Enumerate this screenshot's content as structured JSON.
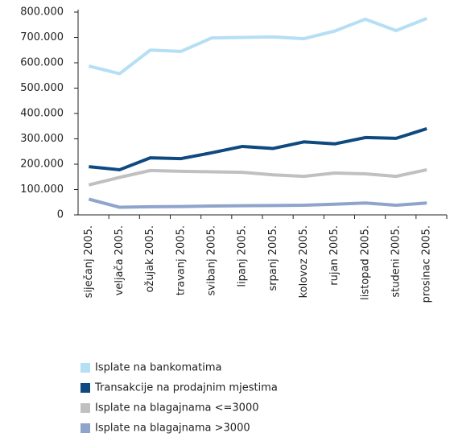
{
  "chart_data": {
    "type": "line",
    "categories": [
      "siječanj 2005.",
      "veljača 2005.",
      "ožujak 2005.",
      "travanj 2005.",
      "svibanj 2005.",
      "lipanj 2005.",
      "srpanj 2005.",
      "kolovoz 2005.",
      "rujan 2005.",
      "listopad 2005.",
      "studeni 2005.",
      "prosinac 2005."
    ],
    "series": [
      {
        "name": "Isplate na bankomatima",
        "color": "#b5dff4",
        "values": [
          587000,
          557000,
          650000,
          645000,
          698000,
          700000,
          702000,
          695000,
          725000,
          772000,
          727000,
          775000
        ]
      },
      {
        "name": "Transakcije na prodajnim mjestima",
        "color": "#0e4a80",
        "values": [
          190000,
          178000,
          225000,
          222000,
          245000,
          270000,
          262000,
          288000,
          280000,
          305000,
          302000,
          340000
        ]
      },
      {
        "name": "Isplate na blagajnama <=3000",
        "color": "#c0c0c2",
        "values": [
          118000,
          148000,
          175000,
          172000,
          170000,
          168000,
          158000,
          152000,
          165000,
          162000,
          152000,
          178000
        ]
      },
      {
        "name": "Isplate na blagajnama >3000",
        "color": "#8fa4cc",
        "values": [
          62000,
          30000,
          32000,
          33000,
          35000,
          36000,
          37000,
          38000,
          42000,
          47000,
          38000,
          47000
        ]
      }
    ],
    "ylim": [
      0,
      800000
    ],
    "yticks": [
      0,
      {
        "value": 100000,
        "label": "100.000"
      },
      {
        "value": 200000,
        "label": "200.000"
      },
      {
        "value": 300000,
        "label": "300.000"
      },
      {
        "value": 400000,
        "label": "400.000"
      },
      {
        "value": 500000,
        "label": "500.000"
      },
      {
        "value": 600000,
        "label": "600.000"
      },
      {
        "value": 700000,
        "label": "700.000"
      },
      {
        "value": 800000,
        "label": "800.000"
      }
    ],
    "grid": false
  }
}
